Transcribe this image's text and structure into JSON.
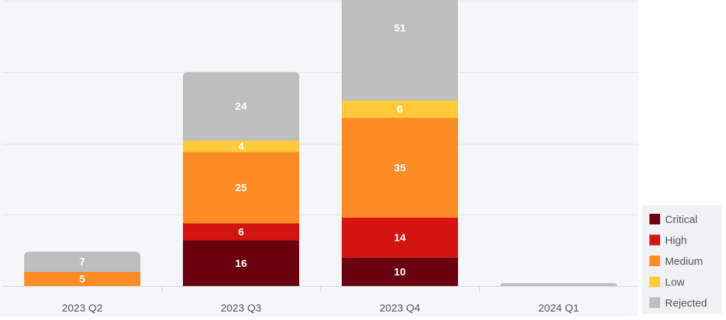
{
  "chart_data": {
    "type": "bar",
    "stacked": true,
    "categories": [
      "2023 Q2",
      "2023 Q3",
      "2023 Q4",
      "2024 Q1"
    ],
    "series": [
      {
        "name": "Critical",
        "color": "#6b0010",
        "values": [
          0,
          16,
          10,
          0
        ]
      },
      {
        "name": "High",
        "color": "#d3140f",
        "values": [
          0,
          6,
          14,
          0
        ]
      },
      {
        "name": "Medium",
        "color": "#fd8c25",
        "values": [
          5,
          25,
          35,
          0
        ]
      },
      {
        "name": "Low",
        "color": "#ffcb3a",
        "values": [
          0,
          4,
          6,
          0
        ]
      },
      {
        "name": "Rejected",
        "color": "#bebebe",
        "values": [
          7,
          24,
          51,
          1
        ]
      }
    ],
    "show_value_labels": [
      [
        false,
        true,
        true,
        false
      ],
      [
        false,
        true,
        true,
        false
      ],
      [
        true,
        true,
        true,
        false
      ],
      [
        false,
        true,
        true,
        false
      ],
      [
        true,
        true,
        true,
        false
      ]
    ],
    "ylim": [
      0,
      120
    ],
    "grid": true,
    "legend_position": "bottom-right",
    "background": "#f5f6fa",
    "title": "",
    "xlabel": "",
    "ylabel": ""
  }
}
